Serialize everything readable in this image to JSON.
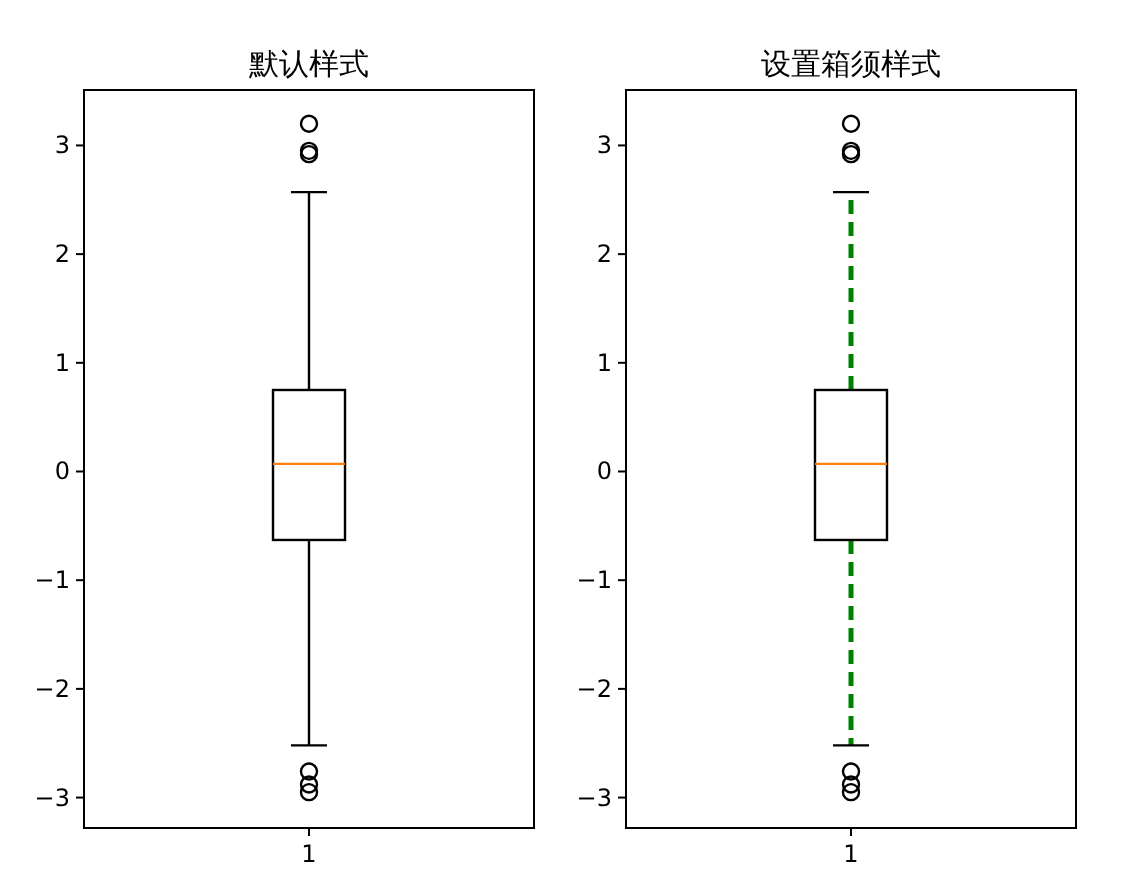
{
  "chart_data": [
    {
      "type": "box",
      "title": "默认样式",
      "categories": [
        "1"
      ],
      "color": "#000000",
      "ylim": [
        -3.28,
        3.51
      ],
      "yticks": [
        -3,
        -2,
        -1,
        0,
        1,
        2,
        3
      ],
      "marker": "circle",
      "line_style": "solid",
      "boxes": [
        {
          "low": -2.52,
          "q1": -0.63,
          "median": 0.07,
          "q3": 0.75,
          "high": 2.57,
          "outliers": [
            3.2,
            2.95,
            2.92,
            -2.76,
            -2.88,
            -2.95
          ]
        }
      ]
    },
    {
      "type": "box",
      "title": "设置箱须样式",
      "categories": [
        "1"
      ],
      "color": "#000000",
      "ylim": [
        -3.28,
        3.51
      ],
      "yticks": [
        -3,
        -2,
        -1,
        0,
        1,
        2,
        3
      ],
      "marker": "circle",
      "line_style": "dashed",
      "boxes": [
        {
          "low": -2.52,
          "q1": -0.63,
          "median": 0.07,
          "q3": 0.75,
          "high": 2.57,
          "outliers": [
            3.2,
            2.95,
            2.92,
            -2.76,
            -2.88,
            -2.95
          ]
        }
      ]
    }
  ]
}
